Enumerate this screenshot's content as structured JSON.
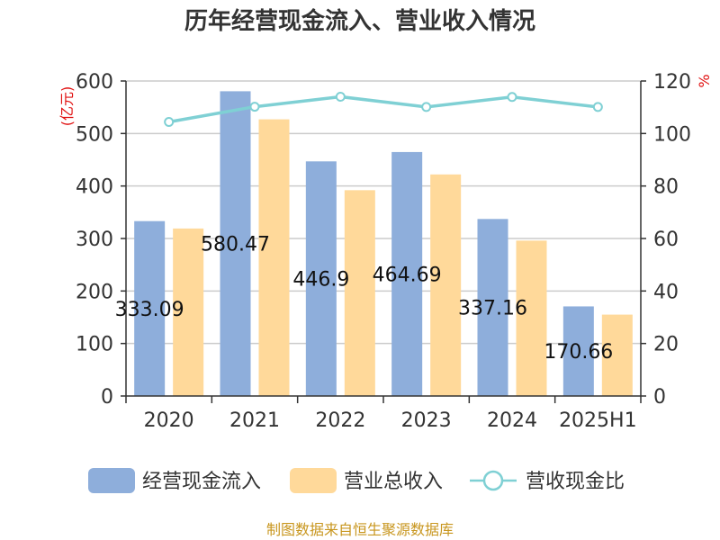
{
  "chart_data": {
    "type": "bar",
    "title": "历年经营现金流入、营业收入情况",
    "categories": [
      "2020",
      "2021",
      "2022",
      "2023",
      "2024",
      "2025H1"
    ],
    "y_left": {
      "unit": "(亿元)",
      "ylim": [
        0,
        600
      ],
      "ticks": [
        0,
        100,
        200,
        300,
        400,
        500,
        600
      ]
    },
    "y_right": {
      "unit": "%",
      "ylim": [
        0,
        120
      ],
      "ticks": [
        0,
        20,
        40,
        60,
        80,
        100,
        120
      ]
    },
    "series": [
      {
        "name": "经营现金流入",
        "type": "bar",
        "axis": "left",
        "color": "#8eaedb",
        "values": [
          333.09,
          580.47,
          446.9,
          464.69,
          337.16,
          170.66
        ],
        "labels": [
          "333.09",
          "580.47",
          "446.9",
          "464.69",
          "337.16",
          "170.66"
        ]
      },
      {
        "name": "营业总收入",
        "type": "bar",
        "axis": "left",
        "color": "#ffd99a",
        "values": [
          319,
          527,
          392,
          422,
          296,
          155
        ]
      },
      {
        "name": "营收现金比",
        "type": "line",
        "axis": "right",
        "color": "#7fd0d4",
        "values": [
          104.4,
          110.2,
          114.0,
          110.1,
          113.9,
          110.1
        ]
      }
    ],
    "grid": true,
    "legend_position": "bottom"
  },
  "footer": {
    "source": "制图数据来自恒生聚源数据库"
  }
}
